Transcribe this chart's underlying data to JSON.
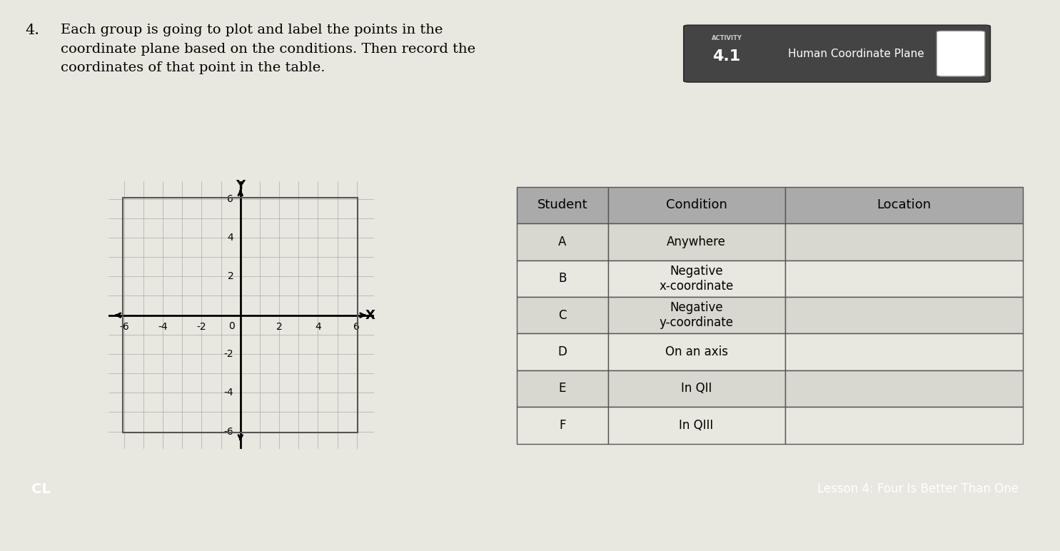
{
  "background_color": "#e8e8e0",
  "title_number": "4.",
  "title_text": "Each group is going to plot and label the points in the\ncoordinate plane based on the conditions. Then record the\ncoordinates of that point in the table.",
  "activity_number": "4.1",
  "activity_label": "Human Coordinate Plane",
  "grid_min": -6,
  "grid_max": 6,
  "grid_step": 1,
  "axis_label_x": "X",
  "axis_label_y": "Y",
  "table_columns": [
    "Student",
    "Condition",
    "Location"
  ],
  "table_rows": [
    [
      "A",
      "Anywhere",
      ""
    ],
    [
      "B",
      "Negative\nx-coordinate",
      ""
    ],
    [
      "C",
      "Negative\ny-coordinate",
      ""
    ],
    [
      "D",
      "On an axis",
      ""
    ],
    [
      "E",
      "In QII",
      ""
    ],
    [
      "F",
      "In QIII",
      ""
    ]
  ],
  "bottom_left_text": "CL",
  "bottom_right_text": "Lesson 4: Four Is Better Than One",
  "bottom_bar_color": "#2d2d2d",
  "header_bg_color": "#b0b0b0",
  "row_bg_even": "#d8d8d0",
  "row_bg_odd": "#e8e8e0",
  "activity_bg_color": "#555555",
  "activity_text_color": "#ffffff"
}
